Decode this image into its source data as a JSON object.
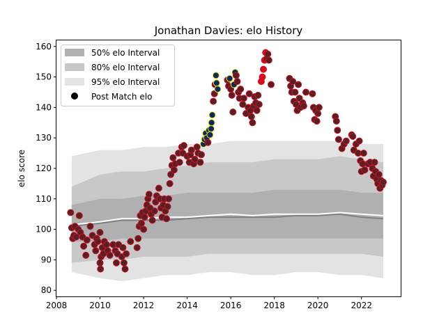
{
  "chart_data": {
    "type": "scatter",
    "title": "Jonathan Davies: elo History",
    "xlabel": "",
    "ylabel": "elo score",
    "xlim": [
      2008.0,
      2023.8
    ],
    "ylim": [
      78,
      162
    ],
    "x_ticks": [
      2008,
      2010,
      2012,
      2014,
      2016,
      2018,
      2020,
      2022
    ],
    "x_tick_labels": [
      "2008",
      "2010",
      "2012",
      "2014",
      "2016",
      "2018",
      "2020",
      "2022"
    ],
    "y_ticks": [
      80,
      90,
      100,
      110,
      120,
      130,
      140,
      150,
      160
    ],
    "y_tick_labels": [
      "80",
      "90",
      "100",
      "110",
      "120",
      "130",
      "140",
      "150",
      "160"
    ],
    "grid": false,
    "legend_position": "top-left",
    "legend": [
      {
        "label": "50% elo Interval",
        "kind": "patch",
        "color": "#b0b0b0"
      },
      {
        "label": "80% elo Interval",
        "kind": "patch",
        "color": "#c8c8c8"
      },
      {
        "label": "95% elo Interval",
        "kind": "patch",
        "color": "#e3e3e3"
      },
      {
        "label": "Post Match elo",
        "kind": "dot",
        "color": "#000000"
      }
    ],
    "colors": {
      "band50": "#b0b0b0",
      "band80": "#c8c8c8",
      "band95": "#e3e3e3",
      "median_line": "#808080",
      "mean_line": "#ffffff",
      "point_fill": "#5a2020",
      "point_edge_default": "#c8102e",
      "point_edge_blue": "#7a8fb0",
      "point_edge_yellow": "#f0e020",
      "point_fill_blue": "#0a2a5a",
      "point_fill_red": "#d01020"
    },
    "bands": {
      "x": [
        2008.7,
        2010,
        2011,
        2012,
        2013,
        2014,
        2015,
        2016,
        2017,
        2018,
        2019,
        2020,
        2021,
        2022,
        2023.0
      ],
      "p95_low": [
        86,
        84,
        83,
        84,
        85,
        85,
        86,
        86,
        85,
        85,
        86,
        86,
        85,
        85,
        84
      ],
      "p10_low": [
        89,
        90,
        90,
        91,
        91,
        91,
        92,
        92,
        92,
        92,
        92,
        92,
        92,
        92,
        91
      ],
      "p25_low": [
        96,
        96,
        97,
        97,
        97,
        97,
        97,
        97,
        97,
        97,
        97,
        97,
        97,
        97,
        97
      ],
      "p75_high": [
        108,
        110,
        110,
        111,
        111,
        112,
        112,
        112,
        112,
        113,
        113,
        113,
        113,
        112,
        112
      ],
      "p90_high": [
        114,
        118,
        119,
        119,
        120,
        121,
        122,
        122,
        122,
        123,
        123,
        123,
        124,
        123,
        122
      ],
      "p97_high": [
        124,
        126,
        126,
        127,
        127,
        128,
        128,
        129,
        129,
        129,
        129,
        129,
        129,
        128,
        128
      ],
      "median": [
        101,
        102,
        103,
        103,
        103,
        103.5,
        104,
        104,
        104,
        104,
        104.5,
        104.5,
        105,
        104,
        103.5
      ],
      "mean": [
        101.5,
        102.5,
        103.5,
        103.5,
        104,
        104,
        104.5,
        105,
        104.5,
        105,
        105,
        105,
        105.5,
        105,
        104.5
      ]
    },
    "points": [
      {
        "x": 2008.65,
        "y": 105.5
      },
      {
        "x": 2008.7,
        "y": 100.5
      },
      {
        "x": 2008.75,
        "y": 97
      },
      {
        "x": 2008.8,
        "y": 98
      },
      {
        "x": 2008.85,
        "y": 101
      },
      {
        "x": 2008.9,
        "y": 97.5
      },
      {
        "x": 2009.0,
        "y": 100
      },
      {
        "x": 2009.05,
        "y": 104.5
      },
      {
        "x": 2009.1,
        "y": 99
      },
      {
        "x": 2009.2,
        "y": 97.5
      },
      {
        "x": 2009.25,
        "y": 94.5
      },
      {
        "x": 2009.35,
        "y": 91.5
      },
      {
        "x": 2009.4,
        "y": 96.5
      },
      {
        "x": 2009.55,
        "y": 101
      },
      {
        "x": 2009.65,
        "y": 98
      },
      {
        "x": 2009.75,
        "y": 95
      },
      {
        "x": 2009.8,
        "y": 93
      },
      {
        "x": 2009.85,
        "y": 97
      },
      {
        "x": 2009.9,
        "y": 96
      },
      {
        "x": 2010.0,
        "y": 99
      },
      {
        "x": 2010.0,
        "y": 89
      },
      {
        "x": 2010.02,
        "y": 87
      },
      {
        "x": 2010.05,
        "y": 91
      },
      {
        "x": 2010.1,
        "y": 94
      },
      {
        "x": 2010.15,
        "y": 92
      },
      {
        "x": 2010.2,
        "y": 96
      },
      {
        "x": 2010.3,
        "y": 95
      },
      {
        "x": 2010.35,
        "y": 93
      },
      {
        "x": 2010.45,
        "y": 91.5
      },
      {
        "x": 2010.6,
        "y": 95
      },
      {
        "x": 2010.7,
        "y": 93
      },
      {
        "x": 2010.75,
        "y": 89
      },
      {
        "x": 2010.8,
        "y": 92
      },
      {
        "x": 2010.85,
        "y": 95
      },
      {
        "x": 2011.0,
        "y": 91
      },
      {
        "x": 2011.05,
        "y": 94
      },
      {
        "x": 2011.1,
        "y": 89
      },
      {
        "x": 2011.15,
        "y": 87
      },
      {
        "x": 2011.2,
        "y": 92
      },
      {
        "x": 2011.4,
        "y": 96
      },
      {
        "x": 2011.7,
        "y": 94
      },
      {
        "x": 2011.75,
        "y": 97
      },
      {
        "x": 2011.8,
        "y": 101
      },
      {
        "x": 2011.85,
        "y": 104.5
      },
      {
        "x": 2011.9,
        "y": 102
      },
      {
        "x": 2011.95,
        "y": 105.5
      },
      {
        "x": 2012.0,
        "y": 100
      },
      {
        "x": 2012.05,
        "y": 104
      },
      {
        "x": 2012.1,
        "y": 106
      },
      {
        "x": 2012.15,
        "y": 108
      },
      {
        "x": 2012.2,
        "y": 110
      },
      {
        "x": 2012.25,
        "y": 111.5
      },
      {
        "x": 2012.3,
        "y": 107
      },
      {
        "x": 2012.35,
        "y": 105
      },
      {
        "x": 2012.4,
        "y": 103
      },
      {
        "x": 2012.5,
        "y": 106
      },
      {
        "x": 2012.55,
        "y": 109
      },
      {
        "x": 2012.6,
        "y": 111
      },
      {
        "x": 2012.7,
        "y": 113.5
      },
      {
        "x": 2012.75,
        "y": 110
      },
      {
        "x": 2012.8,
        "y": 107
      },
      {
        "x": 2012.85,
        "y": 104
      },
      {
        "x": 2012.9,
        "y": 108
      },
      {
        "x": 2012.95,
        "y": 110
      },
      {
        "x": 2013.0,
        "y": 106
      },
      {
        "x": 2013.05,
        "y": 103.5
      },
      {
        "x": 2013.1,
        "y": 107.5
      },
      {
        "x": 2013.15,
        "y": 110
      },
      {
        "x": 2013.2,
        "y": 115
      },
      {
        "x": 2013.25,
        "y": 118
      },
      {
        "x": 2013.3,
        "y": 121
      },
      {
        "x": 2013.35,
        "y": 123.5
      },
      {
        "x": 2013.4,
        "y": 119.5
      },
      {
        "x": 2013.45,
        "y": 121.5
      },
      {
        "x": 2013.6,
        "y": 125
      },
      {
        "x": 2013.65,
        "y": 122
      },
      {
        "x": 2013.75,
        "y": 127
      },
      {
        "x": 2013.8,
        "y": 125
      },
      {
        "x": 2013.85,
        "y": 127.5
      },
      {
        "x": 2014.0,
        "y": 124
      },
      {
        "x": 2014.1,
        "y": 122
      },
      {
        "x": 2014.15,
        "y": 124.5
      },
      {
        "x": 2014.2,
        "y": 126
      },
      {
        "x": 2014.3,
        "y": 121.5
      },
      {
        "x": 2014.35,
        "y": 123
      },
      {
        "x": 2014.45,
        "y": 127
      },
      {
        "x": 2014.5,
        "y": 125
      },
      {
        "x": 2014.6,
        "y": 122
      },
      {
        "x": 2014.65,
        "y": 124.5
      },
      {
        "x": 2014.75,
        "y": 128,
        "c": "y"
      },
      {
        "x": 2014.8,
        "y": 129.5,
        "c": "y"
      },
      {
        "x": 2014.85,
        "y": 131.5,
        "c": "b"
      },
      {
        "x": 2014.9,
        "y": 130,
        "c": "y"
      },
      {
        "x": 2014.95,
        "y": 128.5
      },
      {
        "x": 2015.0,
        "y": 132.5,
        "c": "y"
      },
      {
        "x": 2015.05,
        "y": 131,
        "c": "y"
      },
      {
        "x": 2015.1,
        "y": 133,
        "c": "b"
      },
      {
        "x": 2015.12,
        "y": 135,
        "c": "y"
      },
      {
        "x": 2015.15,
        "y": 137.5,
        "c": "y"
      },
      {
        "x": 2015.2,
        "y": 142
      },
      {
        "x": 2015.25,
        "y": 144.5
      },
      {
        "x": 2015.28,
        "y": 147.5
      },
      {
        "x": 2015.32,
        "y": 150.5,
        "c": "b"
      },
      {
        "x": 2015.35,
        "y": 148,
        "c": "y"
      },
      {
        "x": 2015.4,
        "y": 146,
        "c": "y"
      },
      {
        "x": 2015.85,
        "y": 149
      },
      {
        "x": 2015.9,
        "y": 147
      },
      {
        "x": 2015.95,
        "y": 149.5,
        "c": "y"
      },
      {
        "x": 2016.0,
        "y": 146
      },
      {
        "x": 2016.05,
        "y": 144
      },
      {
        "x": 2016.1,
        "y": 138.5
      },
      {
        "x": 2016.15,
        "y": 147.5,
        "c": "b"
      },
      {
        "x": 2016.2,
        "y": 151.5,
        "c": "b"
      },
      {
        "x": 2016.25,
        "y": 150.5
      },
      {
        "x": 2016.3,
        "y": 148.5
      },
      {
        "x": 2016.35,
        "y": 145
      },
      {
        "x": 2016.4,
        "y": 143
      },
      {
        "x": 2016.45,
        "y": 146
      },
      {
        "x": 2016.55,
        "y": 141
      },
      {
        "x": 2016.6,
        "y": 143
      },
      {
        "x": 2016.7,
        "y": 138
      },
      {
        "x": 2016.8,
        "y": 140
      },
      {
        "x": 2016.85,
        "y": 144.5
      },
      {
        "x": 2016.9,
        "y": 139
      },
      {
        "x": 2016.95,
        "y": 137
      },
      {
        "x": 2017.0,
        "y": 135
      },
      {
        "x": 2017.05,
        "y": 140.5
      },
      {
        "x": 2017.1,
        "y": 143.5
      },
      {
        "x": 2017.15,
        "y": 141.5
      },
      {
        "x": 2017.2,
        "y": 139
      },
      {
        "x": 2017.25,
        "y": 144
      },
      {
        "x": 2017.3,
        "y": 141
      },
      {
        "x": 2017.4,
        "y": 148.5,
        "c": "r"
      },
      {
        "x": 2017.45,
        "y": 150,
        "c": "r"
      },
      {
        "x": 2017.5,
        "y": 152.5,
        "c": "r"
      },
      {
        "x": 2017.55,
        "y": 155.5,
        "c": "r"
      },
      {
        "x": 2017.6,
        "y": 158,
        "c": "r"
      },
      {
        "x": 2017.65,
        "y": 156
      },
      {
        "x": 2017.7,
        "y": 157.5
      },
      {
        "x": 2017.75,
        "y": 155.5
      },
      {
        "x": 2017.85,
        "y": 147.5
      },
      {
        "x": 2018.7,
        "y": 149.5
      },
      {
        "x": 2018.75,
        "y": 147
      },
      {
        "x": 2018.8,
        "y": 145
      },
      {
        "x": 2018.85,
        "y": 148.5
      },
      {
        "x": 2018.9,
        "y": 142
      },
      {
        "x": 2018.95,
        "y": 145
      },
      {
        "x": 2019.0,
        "y": 141
      },
      {
        "x": 2019.05,
        "y": 139
      },
      {
        "x": 2019.1,
        "y": 147.5
      },
      {
        "x": 2019.15,
        "y": 143
      },
      {
        "x": 2019.2,
        "y": 140
      },
      {
        "x": 2019.3,
        "y": 141.5
      },
      {
        "x": 2019.35,
        "y": 140.5
      },
      {
        "x": 2019.45,
        "y": 145
      },
      {
        "x": 2019.75,
        "y": 144.5
      },
      {
        "x": 2019.8,
        "y": 140
      },
      {
        "x": 2019.85,
        "y": 136
      },
      {
        "x": 2019.9,
        "y": 139
      },
      {
        "x": 2019.95,
        "y": 135.5
      },
      {
        "x": 2020.0,
        "y": 138
      },
      {
        "x": 2020.05,
        "y": 140
      },
      {
        "x": 2020.8,
        "y": 137
      },
      {
        "x": 2020.85,
        "y": 135.5
      },
      {
        "x": 2020.9,
        "y": 132.5
      },
      {
        "x": 2020.95,
        "y": 129.5
      },
      {
        "x": 2021.1,
        "y": 126.5
      },
      {
        "x": 2021.2,
        "y": 128
      },
      {
        "x": 2021.3,
        "y": 129
      },
      {
        "x": 2021.55,
        "y": 131
      },
      {
        "x": 2021.6,
        "y": 130.5
      },
      {
        "x": 2021.65,
        "y": 126
      },
      {
        "x": 2021.75,
        "y": 128
      },
      {
        "x": 2021.85,
        "y": 125
      },
      {
        "x": 2021.9,
        "y": 129
      },
      {
        "x": 2021.95,
        "y": 122.5
      },
      {
        "x": 2022.0,
        "y": 119
      },
      {
        "x": 2022.05,
        "y": 121.5
      },
      {
        "x": 2022.1,
        "y": 125
      },
      {
        "x": 2022.15,
        "y": 119.5
      },
      {
        "x": 2022.3,
        "y": 121.5
      },
      {
        "x": 2022.4,
        "y": 122
      },
      {
        "x": 2022.5,
        "y": 120
      },
      {
        "x": 2022.55,
        "y": 117.5
      },
      {
        "x": 2022.6,
        "y": 122
      },
      {
        "x": 2022.65,
        "y": 119
      },
      {
        "x": 2022.7,
        "y": 116.5
      },
      {
        "x": 2022.75,
        "y": 115
      },
      {
        "x": 2022.8,
        "y": 118
      },
      {
        "x": 2022.85,
        "y": 113.5
      },
      {
        "x": 2022.9,
        "y": 116
      },
      {
        "x": 2022.95,
        "y": 114.5
      },
      {
        "x": 2023.0,
        "y": 115.5
      }
    ]
  }
}
